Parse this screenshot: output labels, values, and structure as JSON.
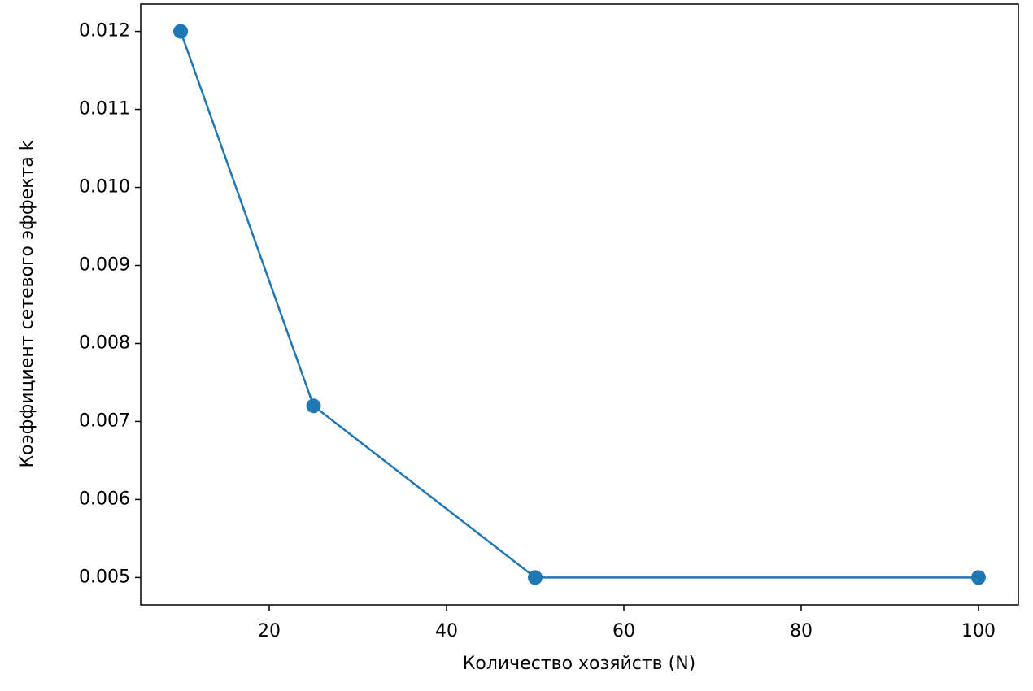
{
  "chart_data": {
    "type": "line",
    "xlabel": "Количество хозяйств (N)",
    "ylabel": "Коэффициент сетевого эффекта k",
    "x": [
      10,
      25,
      50,
      100
    ],
    "series": [
      {
        "color": "#1f77b4",
        "values": [
          0.012,
          0.0072,
          0.005,
          0.005
        ]
      }
    ],
    "xlim": [
      5.5,
      104.5
    ],
    "xticks": [
      20,
      40,
      60,
      80,
      100
    ],
    "ylim": [
      0.00465,
      0.01235
    ],
    "yticks": [
      0.005,
      0.006,
      0.007,
      0.008,
      0.009,
      {
        "value": 0.01,
        "label": "0.010"
      },
      0.011,
      0.012
    ],
    "grid": false,
    "markers": true
  }
}
